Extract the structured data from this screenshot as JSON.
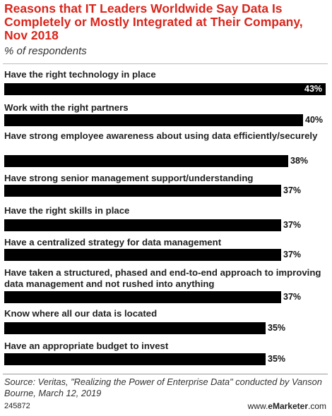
{
  "chart_data": {
    "type": "bar",
    "orientation": "horizontal",
    "title": "Reasons that IT Leaders Worldwide Say Data Is Completely or Mostly Integrated at Their Company, Nov 2018",
    "subtitle": "% of respondents",
    "categories": [
      "Have the right technology in place",
      "Work with the right partners",
      "Have strong employee awareness about using data efficiently/securely",
      "Have strong senior management support/understanding",
      "Have the right skills in place",
      "Have a centralized strategy for data management",
      "Have taken a structured, phased and end-to-end approach to improving data management and not rushed into anything",
      "Know where all our data is located",
      "Have an appropriate budget to invest"
    ],
    "values": [
      43,
      40,
      38,
      37,
      37,
      37,
      37,
      35,
      35
    ],
    "value_labels": [
      "43%",
      "40%",
      "38%",
      "37%",
      "37%",
      "37%",
      "37%",
      "35%",
      "35%"
    ],
    "xlim": [
      0,
      43
    ],
    "grid": false,
    "legend": "none",
    "bar_color": "#000000"
  },
  "footer": {
    "source": "Source: Veritas, \"Realizing the Power of Enterprise Data\" conducted by Vanson Bourne, March 12, 2019",
    "chart_id": "245872",
    "brand_prefix": "www.",
    "brand_name": "eMarketer",
    "brand_suffix": ".com"
  },
  "colors": {
    "title": "#d9261c",
    "bar": "#000000"
  }
}
